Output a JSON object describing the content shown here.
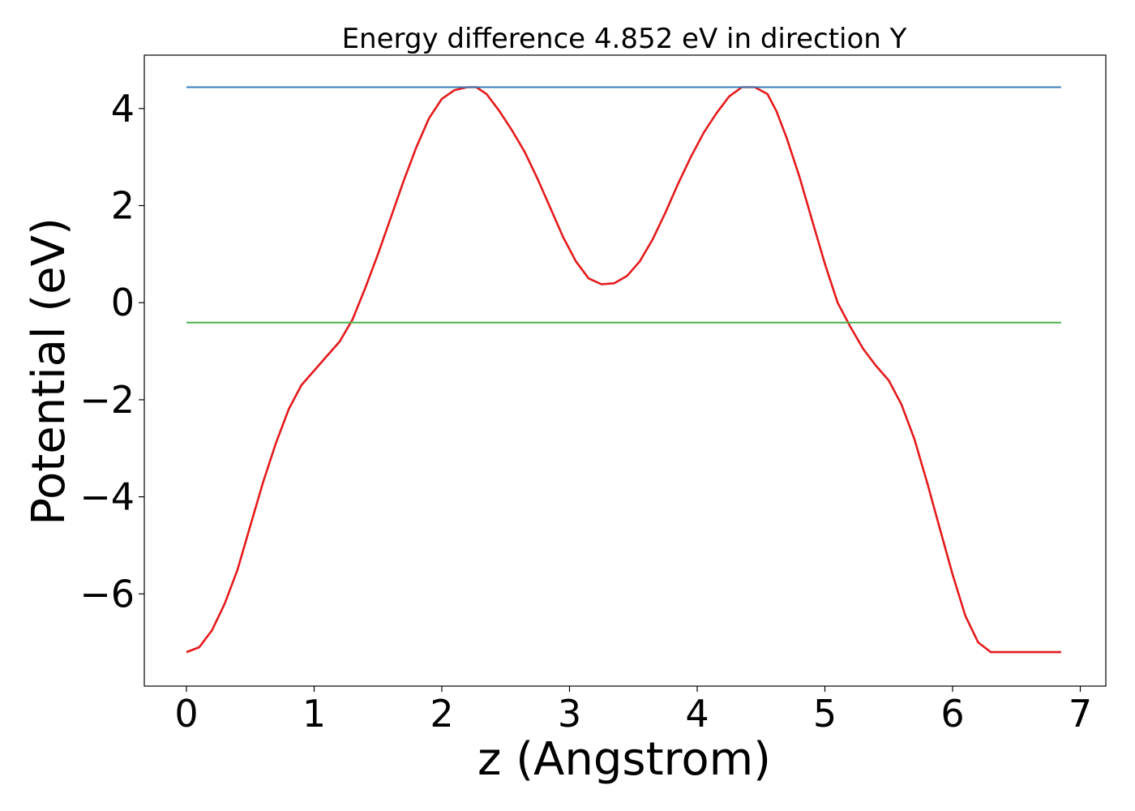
{
  "chart_data": {
    "type": "line",
    "title": "Energy difference 4.852 eV in direction Y",
    "xlabel": "z (Angstrom)",
    "ylabel": "Potential (eV)",
    "xlim": [
      -0.33,
      7.2
    ],
    "ylim": [
      -7.9,
      5.1
    ],
    "x_ticks": [
      0,
      1,
      2,
      3,
      4,
      5,
      6,
      7
    ],
    "x_tick_labels": [
      "0",
      "1",
      "2",
      "3",
      "4",
      "5",
      "6",
      "7"
    ],
    "y_ticks": [
      -6,
      -4,
      -2,
      0,
      2,
      4
    ],
    "y_tick_labels": [
      "−6",
      "−4",
      "−2",
      "0",
      "2",
      "4"
    ],
    "grid": false,
    "legend": false,
    "series": [
      {
        "color": "#e41a1c",
        "x": [
          0,
          0.1,
          0.2,
          0.3,
          0.4,
          0.5,
          0.6,
          0.7,
          0.8,
          0.9,
          1.0,
          1.1,
          1.2,
          1.3,
          1.4,
          1.5,
          1.6,
          1.7,
          1.8,
          1.9,
          2.0,
          2.1,
          2.2,
          2.27,
          2.35,
          2.45,
          2.55,
          2.65,
          2.75,
          2.85,
          2.95,
          3.05,
          3.15,
          3.25,
          3.35,
          3.45,
          3.55,
          3.65,
          3.75,
          3.85,
          3.95,
          4.05,
          4.15,
          4.25,
          4.35,
          4.45,
          4.55,
          4.62,
          4.7,
          4.8,
          4.9,
          5.0,
          5.1,
          5.2,
          5.3,
          5.4,
          5.5,
          5.6,
          5.7,
          5.8,
          5.9,
          6.0,
          6.1,
          6.2,
          6.3,
          6.4,
          6.5,
          6.6,
          6.7,
          6.8,
          6.85
        ],
        "y": [
          -7.2,
          -7.1,
          -6.75,
          -6.2,
          -5.5,
          -4.6,
          -3.7,
          -2.9,
          -2.2,
          -1.7,
          -1.4,
          -1.1,
          -0.8,
          -0.35,
          0.3,
          1.0,
          1.75,
          2.5,
          3.2,
          3.8,
          4.2,
          4.38,
          4.44,
          4.44,
          4.3,
          3.95,
          3.55,
          3.1,
          2.55,
          1.95,
          1.35,
          0.85,
          0.5,
          0.38,
          0.4,
          0.55,
          0.85,
          1.3,
          1.85,
          2.45,
          3.0,
          3.5,
          3.9,
          4.25,
          4.44,
          4.44,
          4.3,
          3.95,
          3.4,
          2.6,
          1.7,
          0.8,
          0.0,
          -0.5,
          -0.95,
          -1.3,
          -1.6,
          -2.1,
          -2.8,
          -3.7,
          -4.65,
          -5.6,
          -6.45,
          -7.0,
          -7.2,
          -7.2,
          -7.2,
          -7.2,
          -7.2,
          -7.2,
          -7.2
        ]
      },
      {
        "color": "#377eb8",
        "x": [
          0,
          6.85
        ],
        "y": [
          4.44,
          4.44
        ]
      },
      {
        "color": "#4daf4a",
        "x": [
          0,
          6.85
        ],
        "y": [
          -0.41,
          -0.41
        ]
      }
    ]
  }
}
